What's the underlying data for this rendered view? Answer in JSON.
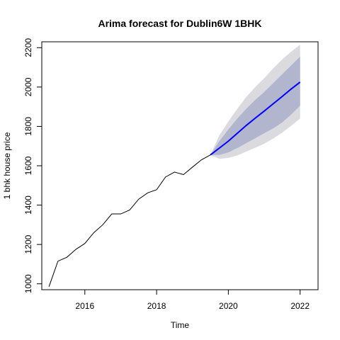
{
  "chart_data": {
    "type": "line",
    "title": "Arima forecast for Dublin6W 1BHK",
    "xlabel": "Time",
    "ylabel": "1 bhk house price",
    "xlim": [
      2014.8,
      2022.5
    ],
    "ylim": [
      970,
      2230
    ],
    "x_ticks": [
      2016,
      2018,
      2020,
      2022
    ],
    "y_ticks": [
      1000,
      1200,
      1400,
      1600,
      1800,
      2000,
      2200
    ],
    "x_tick_labels": [
      "2016",
      "2018",
      "2020",
      "2022"
    ],
    "y_tick_labels": [
      "1000",
      "1200",
      "1400",
      "1600",
      "1800",
      "2000",
      "2200"
    ],
    "grid": false,
    "legend": "none",
    "colors": {
      "history": "#000000",
      "forecast": "#0000ff",
      "band80": "#b1b5ce",
      "band95": "#dbdbdf",
      "axes": "#000000"
    },
    "series": [
      {
        "role": "history",
        "x": [
          2015.0,
          2015.25,
          2015.5,
          2015.75,
          2016.0,
          2016.25,
          2016.5,
          2016.75,
          2017.0,
          2017.25,
          2017.5,
          2017.75,
          2018.0,
          2018.25,
          2018.5,
          2018.75,
          2019.0,
          2019.25,
          2019.5
        ],
        "y": [
          985,
          1115,
          1135,
          1175,
          1205,
          1260,
          1300,
          1355,
          1355,
          1375,
          1430,
          1462,
          1478,
          1543,
          1568,
          1555,
          1593,
          1630,
          1655
        ]
      },
      {
        "role": "forecast",
        "x": [
          2019.5,
          2019.75,
          2020.0,
          2020.25,
          2020.5,
          2020.75,
          2021.0,
          2021.25,
          2021.5,
          2021.75,
          2022.0
        ],
        "y": [
          1655,
          1690,
          1725,
          1765,
          1805,
          1842,
          1878,
          1915,
          1952,
          1990,
          2025
        ],
        "lower80": [
          1655,
          1655,
          1668,
          1690,
          1715,
          1740,
          1765,
          1790,
          1820,
          1860,
          1905
        ],
        "upper80": [
          1655,
          1725,
          1785,
          1840,
          1890,
          1935,
          1975,
          2020,
          2065,
          2110,
          2155
        ],
        "lower95": [
          1655,
          1635,
          1640,
          1652,
          1672,
          1692,
          1712,
          1738,
          1768,
          1803,
          1840
        ],
        "upper95": [
          1655,
          1755,
          1825,
          1890,
          1950,
          2000,
          2045,
          2095,
          2140,
          2180,
          2215
        ]
      }
    ]
  }
}
